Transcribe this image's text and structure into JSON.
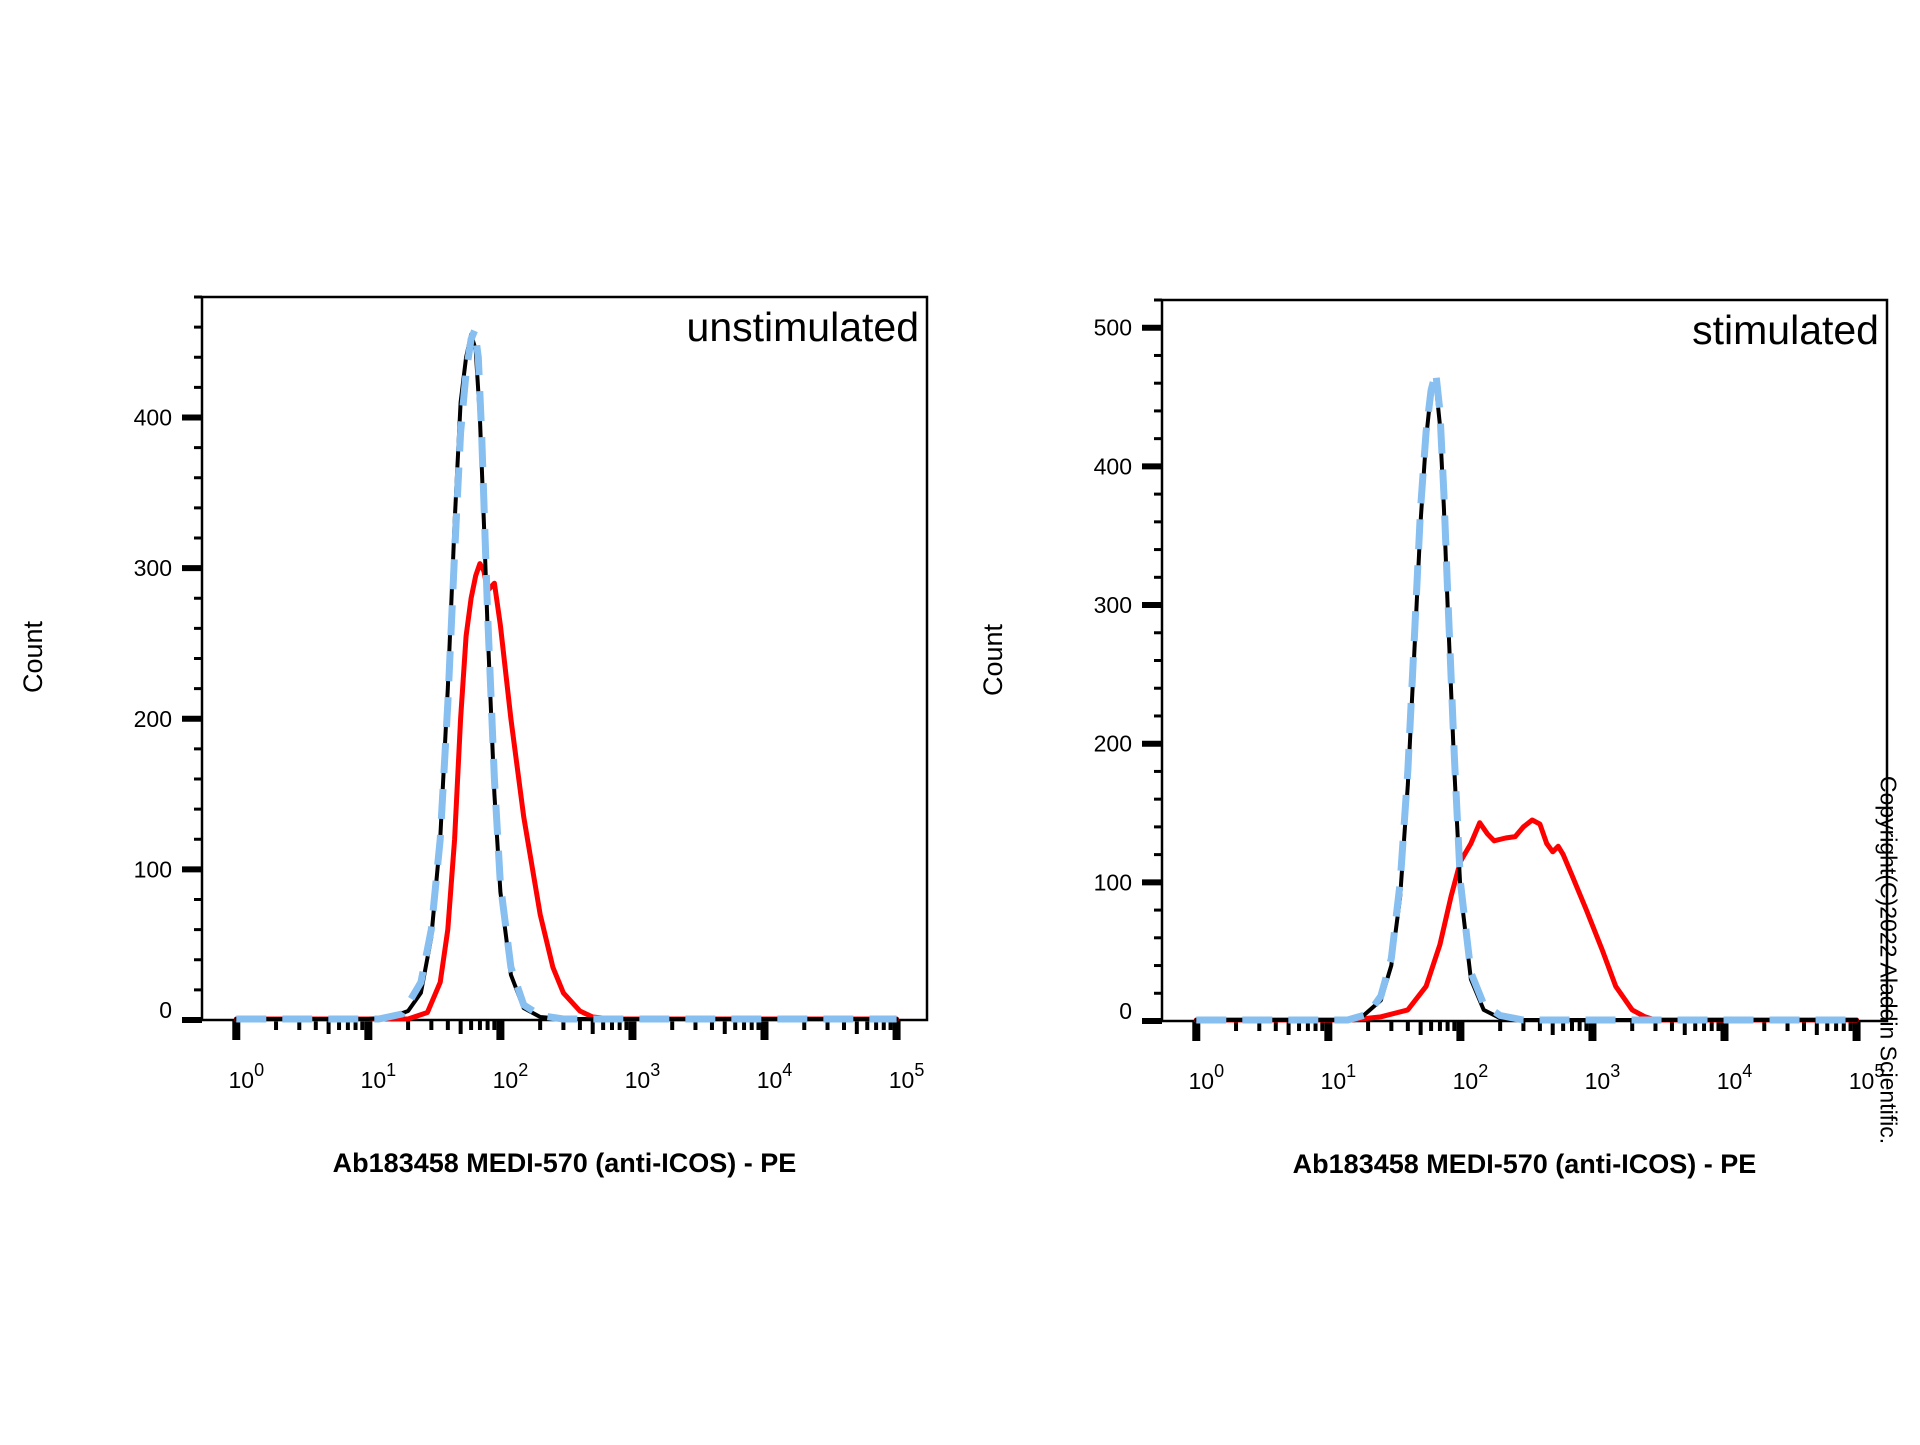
{
  "watermark": "Copyright(C)2022 Aladdin Scientific.",
  "chart_data": [
    {
      "type": "line",
      "name": "left",
      "annotation": "unstimulated",
      "xlabel": "Ab183458 MEDI-570 (anti-ICOS) - PE",
      "ylabel": "Count",
      "x_scale": "log",
      "xlim": [
        0.55,
        170000
      ],
      "ylim": [
        0,
        480
      ],
      "yticks": [
        0,
        100,
        200,
        300,
        400
      ],
      "xtick_exponents": [
        0,
        1,
        2,
        3,
        4,
        5
      ],
      "colors": {
        "black": "#000000",
        "blue": "#86bff0",
        "red": "#ff0000"
      },
      "series": [
        {
          "key": "black",
          "style": "solid",
          "color": "#000000",
          "points": [
            [
              1,
              0
            ],
            [
              10,
              0
            ],
            [
              15,
              2
            ],
            [
              20,
              6
            ],
            [
              25,
              18
            ],
            [
              30,
              55
            ],
            [
              35,
              120
            ],
            [
              40,
              220
            ],
            [
              45,
              330
            ],
            [
              50,
              410
            ],
            [
              55,
              440
            ],
            [
              60,
              455
            ],
            [
              65,
              445
            ],
            [
              70,
              400
            ],
            [
              75,
              330
            ],
            [
              80,
              260
            ],
            [
              90,
              150
            ],
            [
              100,
              85
            ],
            [
              120,
              30
            ],
            [
              150,
              8
            ],
            [
              200,
              2
            ],
            [
              300,
              0
            ],
            [
              100000,
              0
            ]
          ]
        },
        {
          "key": "blue",
          "style": "dashed",
          "color": "#86bff0",
          "points": [
            [
              1,
              0
            ],
            [
              12,
              0
            ],
            [
              18,
              4
            ],
            [
              25,
              25
            ],
            [
              30,
              60
            ],
            [
              35,
              120
            ],
            [
              40,
              210
            ],
            [
              45,
              310
            ],
            [
              50,
              390
            ],
            [
              55,
              430
            ],
            [
              60,
              452
            ],
            [
              64,
              458
            ],
            [
              68,
              440
            ],
            [
              72,
              390
            ],
            [
              80,
              270
            ],
            [
              90,
              160
            ],
            [
              100,
              90
            ],
            [
              120,
              35
            ],
            [
              150,
              10
            ],
            [
              200,
              3
            ],
            [
              300,
              0
            ],
            [
              100000,
              0
            ]
          ]
        },
        {
          "key": "red",
          "style": "solid",
          "color": "#ff0000",
          "points": [
            [
              1,
              0
            ],
            [
              20,
              0
            ],
            [
              28,
              5
            ],
            [
              35,
              25
            ],
            [
              40,
              60
            ],
            [
              45,
              120
            ],
            [
              50,
              200
            ],
            [
              55,
              255
            ],
            [
              60,
              280
            ],
            [
              65,
              295
            ],
            [
              70,
              303
            ],
            [
              75,
              298
            ],
            [
              80,
              285
            ],
            [
              90,
              290
            ],
            [
              100,
              262
            ],
            [
              120,
              200
            ],
            [
              150,
              135
            ],
            [
              200,
              70
            ],
            [
              250,
              35
            ],
            [
              300,
              18
            ],
            [
              400,
              6
            ],
            [
              500,
              2
            ],
            [
              700,
              0
            ],
            [
              100000,
              0
            ]
          ]
        }
      ]
    },
    {
      "type": "line",
      "name": "right",
      "annotation": "stimulated",
      "xlabel": "Ab183458 MEDI-570 (anti-ICOS) - PE",
      "ylabel": "Count",
      "x_scale": "log",
      "xlim": [
        0.55,
        170000
      ],
      "ylim": [
        0,
        520
      ],
      "yticks": [
        0,
        100,
        200,
        300,
        400,
        500
      ],
      "xtick_exponents": [
        0,
        1,
        2,
        3,
        4,
        5
      ],
      "colors": {
        "black": "#000000",
        "blue": "#86bff0",
        "red": "#ff0000"
      },
      "series": [
        {
          "key": "black",
          "style": "solid",
          "color": "#000000",
          "points": [
            [
              1,
              0
            ],
            [
              12,
              0
            ],
            [
              18,
              3
            ],
            [
              25,
              15
            ],
            [
              30,
              40
            ],
            [
              35,
              90
            ],
            [
              40,
              170
            ],
            [
              45,
              270
            ],
            [
              50,
              360
            ],
            [
              55,
              420
            ],
            [
              60,
              455
            ],
            [
              65,
              460
            ],
            [
              70,
              430
            ],
            [
              75,
              370
            ],
            [
              80,
              300
            ],
            [
              90,
              180
            ],
            [
              100,
              95
            ],
            [
              120,
              30
            ],
            [
              150,
              8
            ],
            [
              200,
              2
            ],
            [
              300,
              0
            ],
            [
              100000,
              0
            ]
          ]
        },
        {
          "key": "blue",
          "style": "dashed",
          "color": "#86bff0",
          "points": [
            [
              1,
              0
            ],
            [
              14,
              0
            ],
            [
              20,
              5
            ],
            [
              25,
              18
            ],
            [
              30,
              45
            ],
            [
              35,
              100
            ],
            [
              40,
              180
            ],
            [
              45,
              280
            ],
            [
              50,
              370
            ],
            [
              55,
              425
            ],
            [
              60,
              455
            ],
            [
              65,
              468
            ],
            [
              70,
              440
            ],
            [
              75,
              380
            ],
            [
              80,
              310
            ],
            [
              90,
              190
            ],
            [
              100,
              100
            ],
            [
              120,
              35
            ],
            [
              150,
              12
            ],
            [
              200,
              4
            ],
            [
              300,
              0
            ],
            [
              1500,
              0
            ],
            [
              100000,
              0
            ]
          ]
        },
        {
          "key": "red",
          "style": "solid",
          "color": "#ff0000",
          "points": [
            [
              1,
              0
            ],
            [
              15,
              0
            ],
            [
              25,
              3
            ],
            [
              40,
              8
            ],
            [
              55,
              25
            ],
            [
              70,
              55
            ],
            [
              85,
              90
            ],
            [
              100,
              115
            ],
            [
              120,
              128
            ],
            [
              140,
              143
            ],
            [
              160,
              135
            ],
            [
              180,
              130
            ],
            [
              220,
              132
            ],
            [
              260,
              133
            ],
            [
              300,
              140
            ],
            [
              350,
              145
            ],
            [
              400,
              142
            ],
            [
              450,
              128
            ],
            [
              500,
              122
            ],
            [
              550,
              126
            ],
            [
              600,
              120
            ],
            [
              700,
              105
            ],
            [
              900,
              80
            ],
            [
              1200,
              50
            ],
            [
              1500,
              25
            ],
            [
              2000,
              8
            ],
            [
              2500,
              3
            ],
            [
              3000,
              0
            ],
            [
              100000,
              0
            ]
          ]
        }
      ]
    }
  ]
}
